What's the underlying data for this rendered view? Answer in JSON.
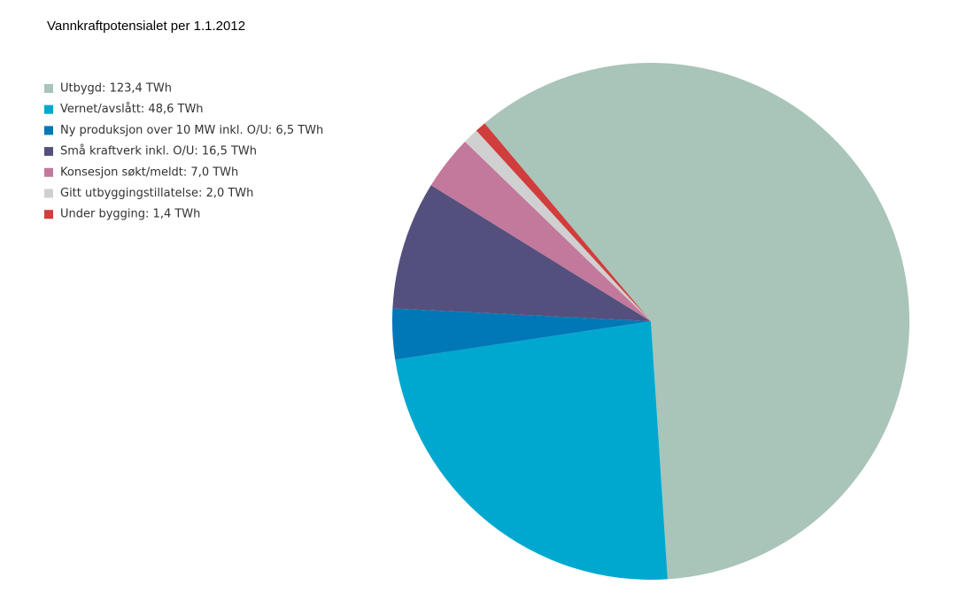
{
  "chart_data": {
    "type": "pie",
    "title": "Vannkraftpotensialet per 1.1.2012",
    "categories": [
      "Utbygd: 123,4 TWh",
      "Vernet/avslått: 48,6 TWh",
      "Ny produksjon over 10 MW inkl. O/U: 6,5 TWh",
      "Små kraftverk inkl. O/U: 16,5 TWh",
      "Konsesjon søkt/meldt: 7,0 TWh",
      "Gitt utbyggingstillatelse: 2,0 TWh",
      "Under bygging: 1,4 TWh"
    ],
    "values": [
      123.4,
      48.6,
      6.5,
      16.5,
      7.0,
      2.0,
      1.4
    ],
    "colors": [
      "#a9c4b8",
      "#00a8d0",
      "#0077b6",
      "#54507e",
      "#c2799c",
      "#d0d0d0",
      "#d13c3c"
    ],
    "legend": "upper left"
  }
}
